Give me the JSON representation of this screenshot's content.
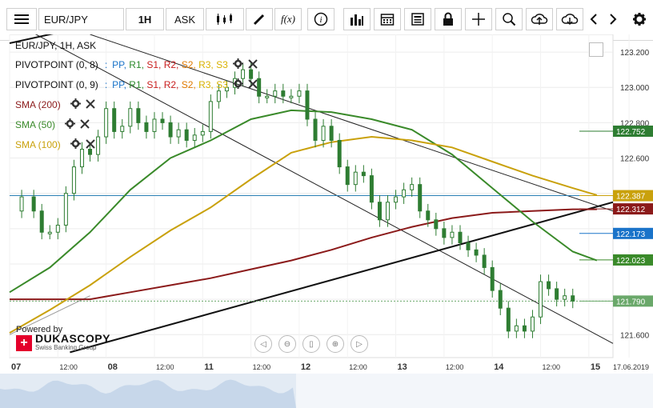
{
  "toolbar": {
    "menu_icon": "hamburger-menu-icon",
    "instrument": "EUR/JPY",
    "timeframe": "1H",
    "side": "ASK",
    "icons": [
      "candle-type-icon",
      "draw-pencil-icon",
      "indicator-fx-icon",
      "info-icon",
      "volume-bars-icon",
      "calendar-icon",
      "news-icon",
      "lock-icon",
      "crosshair-icon",
      "zoom-search-icon",
      "upload-cloud-icon",
      "download-cloud-icon",
      "chevron-left-icon",
      "chevron-right-icon",
      "settings-gear-icon"
    ]
  },
  "legend": {
    "title": "EUR/JPY, 1H, ASK",
    "pivot1": {
      "name": "PIVOTPOINT (0, 8)",
      "sep": ":"
    },
    "pivot2": {
      "name": "PIVOTPOINT (0, 9)",
      "sep": ":"
    },
    "pivot_levels": [
      "PP,",
      "R1,",
      "S1,",
      "R2,",
      "S2,",
      "R3,",
      "S3"
    ],
    "sma200": "SMA (200)",
    "sma50": "SMA (50)",
    "sma100": "SMA (100)"
  },
  "branding": {
    "powered": "Powered by",
    "name": "DUKASCOPY",
    "tagline": "Swiss Banking Group"
  },
  "colors": {
    "sma200": "#8b1a1a",
    "sma50": "#3a8a2a",
    "sma100": "#c9a10c",
    "candle": "#2e7d32",
    "pivot_line": "#2b7fb4",
    "price_tag": "#6aa86a",
    "blue_tag": "#1a73c9"
  },
  "chart_data": {
    "type": "line",
    "title": "EUR/JPY, 1H, ASK",
    "ylim": [
      121.47,
      123.3
    ],
    "y_ticks": [
      123.2,
      123.0,
      122.8,
      122.6,
      122.4,
      122.2,
      122.0,
      121.8,
      121.6
    ],
    "y_tick_labels": [
      "123.200",
      "123.000",
      "122.800",
      "122.600",
      "",
      "",
      "",
      "",
      "121.600"
    ],
    "x_tick_labels": [
      {
        "label": "07",
        "t": 0
      },
      {
        "label": "12:00",
        "t": 12
      },
      {
        "label": "08",
        "t": 24
      },
      {
        "label": "12:00",
        "t": 36
      },
      {
        "label": "11",
        "t": 48
      },
      {
        "label": "12:00",
        "t": 60
      },
      {
        "label": "12",
        "t": 72
      },
      {
        "label": "12:00",
        "t": 84
      },
      {
        "label": "13",
        "t": 96
      },
      {
        "label": "12:00",
        "t": 108
      },
      {
        "label": "14",
        "t": 120
      },
      {
        "label": "12:00",
        "t": 132
      },
      {
        "label": "15",
        "t": 144
      },
      {
        "label": "17.06.2019",
        "t": 154
      }
    ],
    "price_path": [
      [
        0,
        122.3
      ],
      [
        3,
        122.38
      ],
      [
        6,
        122.3
      ],
      [
        8,
        122.18
      ],
      [
        10,
        122.18
      ],
      [
        12,
        122.22
      ],
      [
        14,
        122.4
      ],
      [
        16,
        122.55
      ],
      [
        18,
        122.65
      ],
      [
        20,
        122.62
      ],
      [
        22,
        122.72
      ],
      [
        24,
        122.88
      ],
      [
        26,
        122.75
      ],
      [
        28,
        122.78
      ],
      [
        30,
        122.88
      ],
      [
        32,
        122.8
      ],
      [
        34,
        122.75
      ],
      [
        36,
        122.82
      ],
      [
        38,
        122.8
      ],
      [
        40,
        122.72
      ],
      [
        42,
        122.76
      ],
      [
        44,
        122.7
      ],
      [
        46,
        122.73
      ],
      [
        48,
        122.75
      ],
      [
        50,
        122.92
      ],
      [
        52,
        122.98
      ],
      [
        54,
        123.0
      ],
      [
        56,
        123.05
      ],
      [
        58,
        123.1
      ],
      [
        60,
        123.05
      ],
      [
        62,
        122.95
      ],
      [
        64,
        122.95
      ],
      [
        66,
        122.98
      ],
      [
        68,
        122.95
      ],
      [
        70,
        122.95
      ],
      [
        72,
        122.98
      ],
      [
        74,
        122.82
      ],
      [
        76,
        122.7
      ],
      [
        78,
        122.78
      ],
      [
        80,
        122.7
      ],
      [
        82,
        122.55
      ],
      [
        84,
        122.45
      ],
      [
        86,
        122.52
      ],
      [
        88,
        122.5
      ],
      [
        90,
        122.35
      ],
      [
        92,
        122.25
      ],
      [
        94,
        122.35
      ],
      [
        96,
        122.38
      ],
      [
        98,
        122.42
      ],
      [
        100,
        122.45
      ],
      [
        102,
        122.3
      ],
      [
        104,
        122.25
      ],
      [
        106,
        122.2
      ],
      [
        108,
        122.15
      ],
      [
        110,
        122.18
      ],
      [
        112,
        122.12
      ],
      [
        114,
        122.08
      ],
      [
        116,
        122.05
      ],
      [
        118,
        121.98
      ],
      [
        120,
        121.85
      ],
      [
        122,
        121.75
      ],
      [
        124,
        121.62
      ],
      [
        126,
        121.65
      ],
      [
        128,
        121.62
      ],
      [
        130,
        121.7
      ],
      [
        132,
        121.9
      ],
      [
        134,
        121.86
      ],
      [
        136,
        121.8
      ],
      [
        138,
        121.82
      ],
      [
        140,
        121.79
      ]
    ],
    "series": [
      {
        "name": "SMA (200)",
        "color": "#8b1a1a",
        "points": [
          [
            0,
            121.8
          ],
          [
            10,
            121.8
          ],
          [
            20,
            121.8
          ],
          [
            30,
            121.84
          ],
          [
            40,
            121.88
          ],
          [
            50,
            121.92
          ],
          [
            60,
            121.97
          ],
          [
            70,
            122.02
          ],
          [
            80,
            122.08
          ],
          [
            90,
            122.15
          ],
          [
            100,
            122.21
          ],
          [
            110,
            122.26
          ],
          [
            120,
            122.29
          ],
          [
            130,
            122.3
          ],
          [
            140,
            122.31
          ],
          [
            146,
            122.31
          ]
        ]
      },
      {
        "name": "SMA (50)",
        "color": "#3a8a2a",
        "points": [
          [
            0,
            121.84
          ],
          [
            10,
            121.98
          ],
          [
            20,
            122.18
          ],
          [
            30,
            122.42
          ],
          [
            40,
            122.6
          ],
          [
            50,
            122.7
          ],
          [
            60,
            122.82
          ],
          [
            70,
            122.87
          ],
          [
            80,
            122.86
          ],
          [
            90,
            122.82
          ],
          [
            100,
            122.76
          ],
          [
            110,
            122.62
          ],
          [
            120,
            122.43
          ],
          [
            130,
            122.24
          ],
          [
            140,
            122.07
          ],
          [
            146,
            122.02
          ]
        ]
      },
      {
        "name": "SMA (100)",
        "color": "#c9a10c",
        "points": [
          [
            0,
            121.61
          ],
          [
            10,
            121.74
          ],
          [
            20,
            121.88
          ],
          [
            30,
            122.04
          ],
          [
            40,
            122.19
          ],
          [
            50,
            122.32
          ],
          [
            60,
            122.48
          ],
          [
            70,
            122.63
          ],
          [
            80,
            122.69
          ],
          [
            90,
            122.72
          ],
          [
            100,
            122.7
          ],
          [
            110,
            122.66
          ],
          [
            120,
            122.58
          ],
          [
            130,
            122.5
          ],
          [
            140,
            122.43
          ],
          [
            146,
            122.39
          ]
        ]
      }
    ],
    "price_levels": [
      {
        "label": "122.752",
        "value": 122.752,
        "color": "#2e7d32"
      },
      {
        "label": "122.387",
        "value": 122.387,
        "color": "#c9a10c"
      },
      {
        "label": "122.312",
        "value": 122.312,
        "color": "#8b1a1a"
      },
      {
        "label": "122.173",
        "value": 122.173,
        "color": "#1a73c9"
      },
      {
        "label": "122.023",
        "value": 122.023,
        "color": "#3a8a2a"
      },
      {
        "label": "121.790",
        "value": 121.79,
        "color": "#6aa86a"
      }
    ],
    "grid": true,
    "legend_position": "top-left"
  }
}
